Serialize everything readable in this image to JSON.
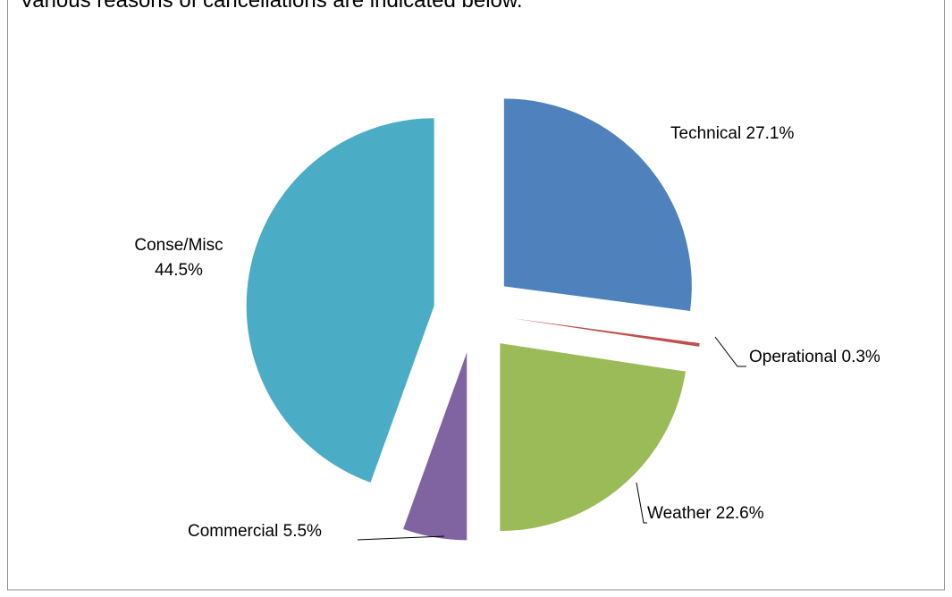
{
  "chart_data": {
    "type": "pie",
    "title": "Various reasons of cancellations are indicated below.",
    "categories": [
      "Technical",
      "Operational",
      "Weather",
      "Commercial",
      "Conse/Misc"
    ],
    "values": [
      27.1,
      0.3,
      22.6,
      5.5,
      44.5
    ],
    "value_labels": [
      "27.1%",
      "0.3%",
      "22.6%",
      "5.5%",
      "44.5%"
    ],
    "colors": [
      "#4f81bd",
      "#c0504d",
      "#9bbb59",
      "#8064a2",
      "#4bacc6"
    ]
  }
}
